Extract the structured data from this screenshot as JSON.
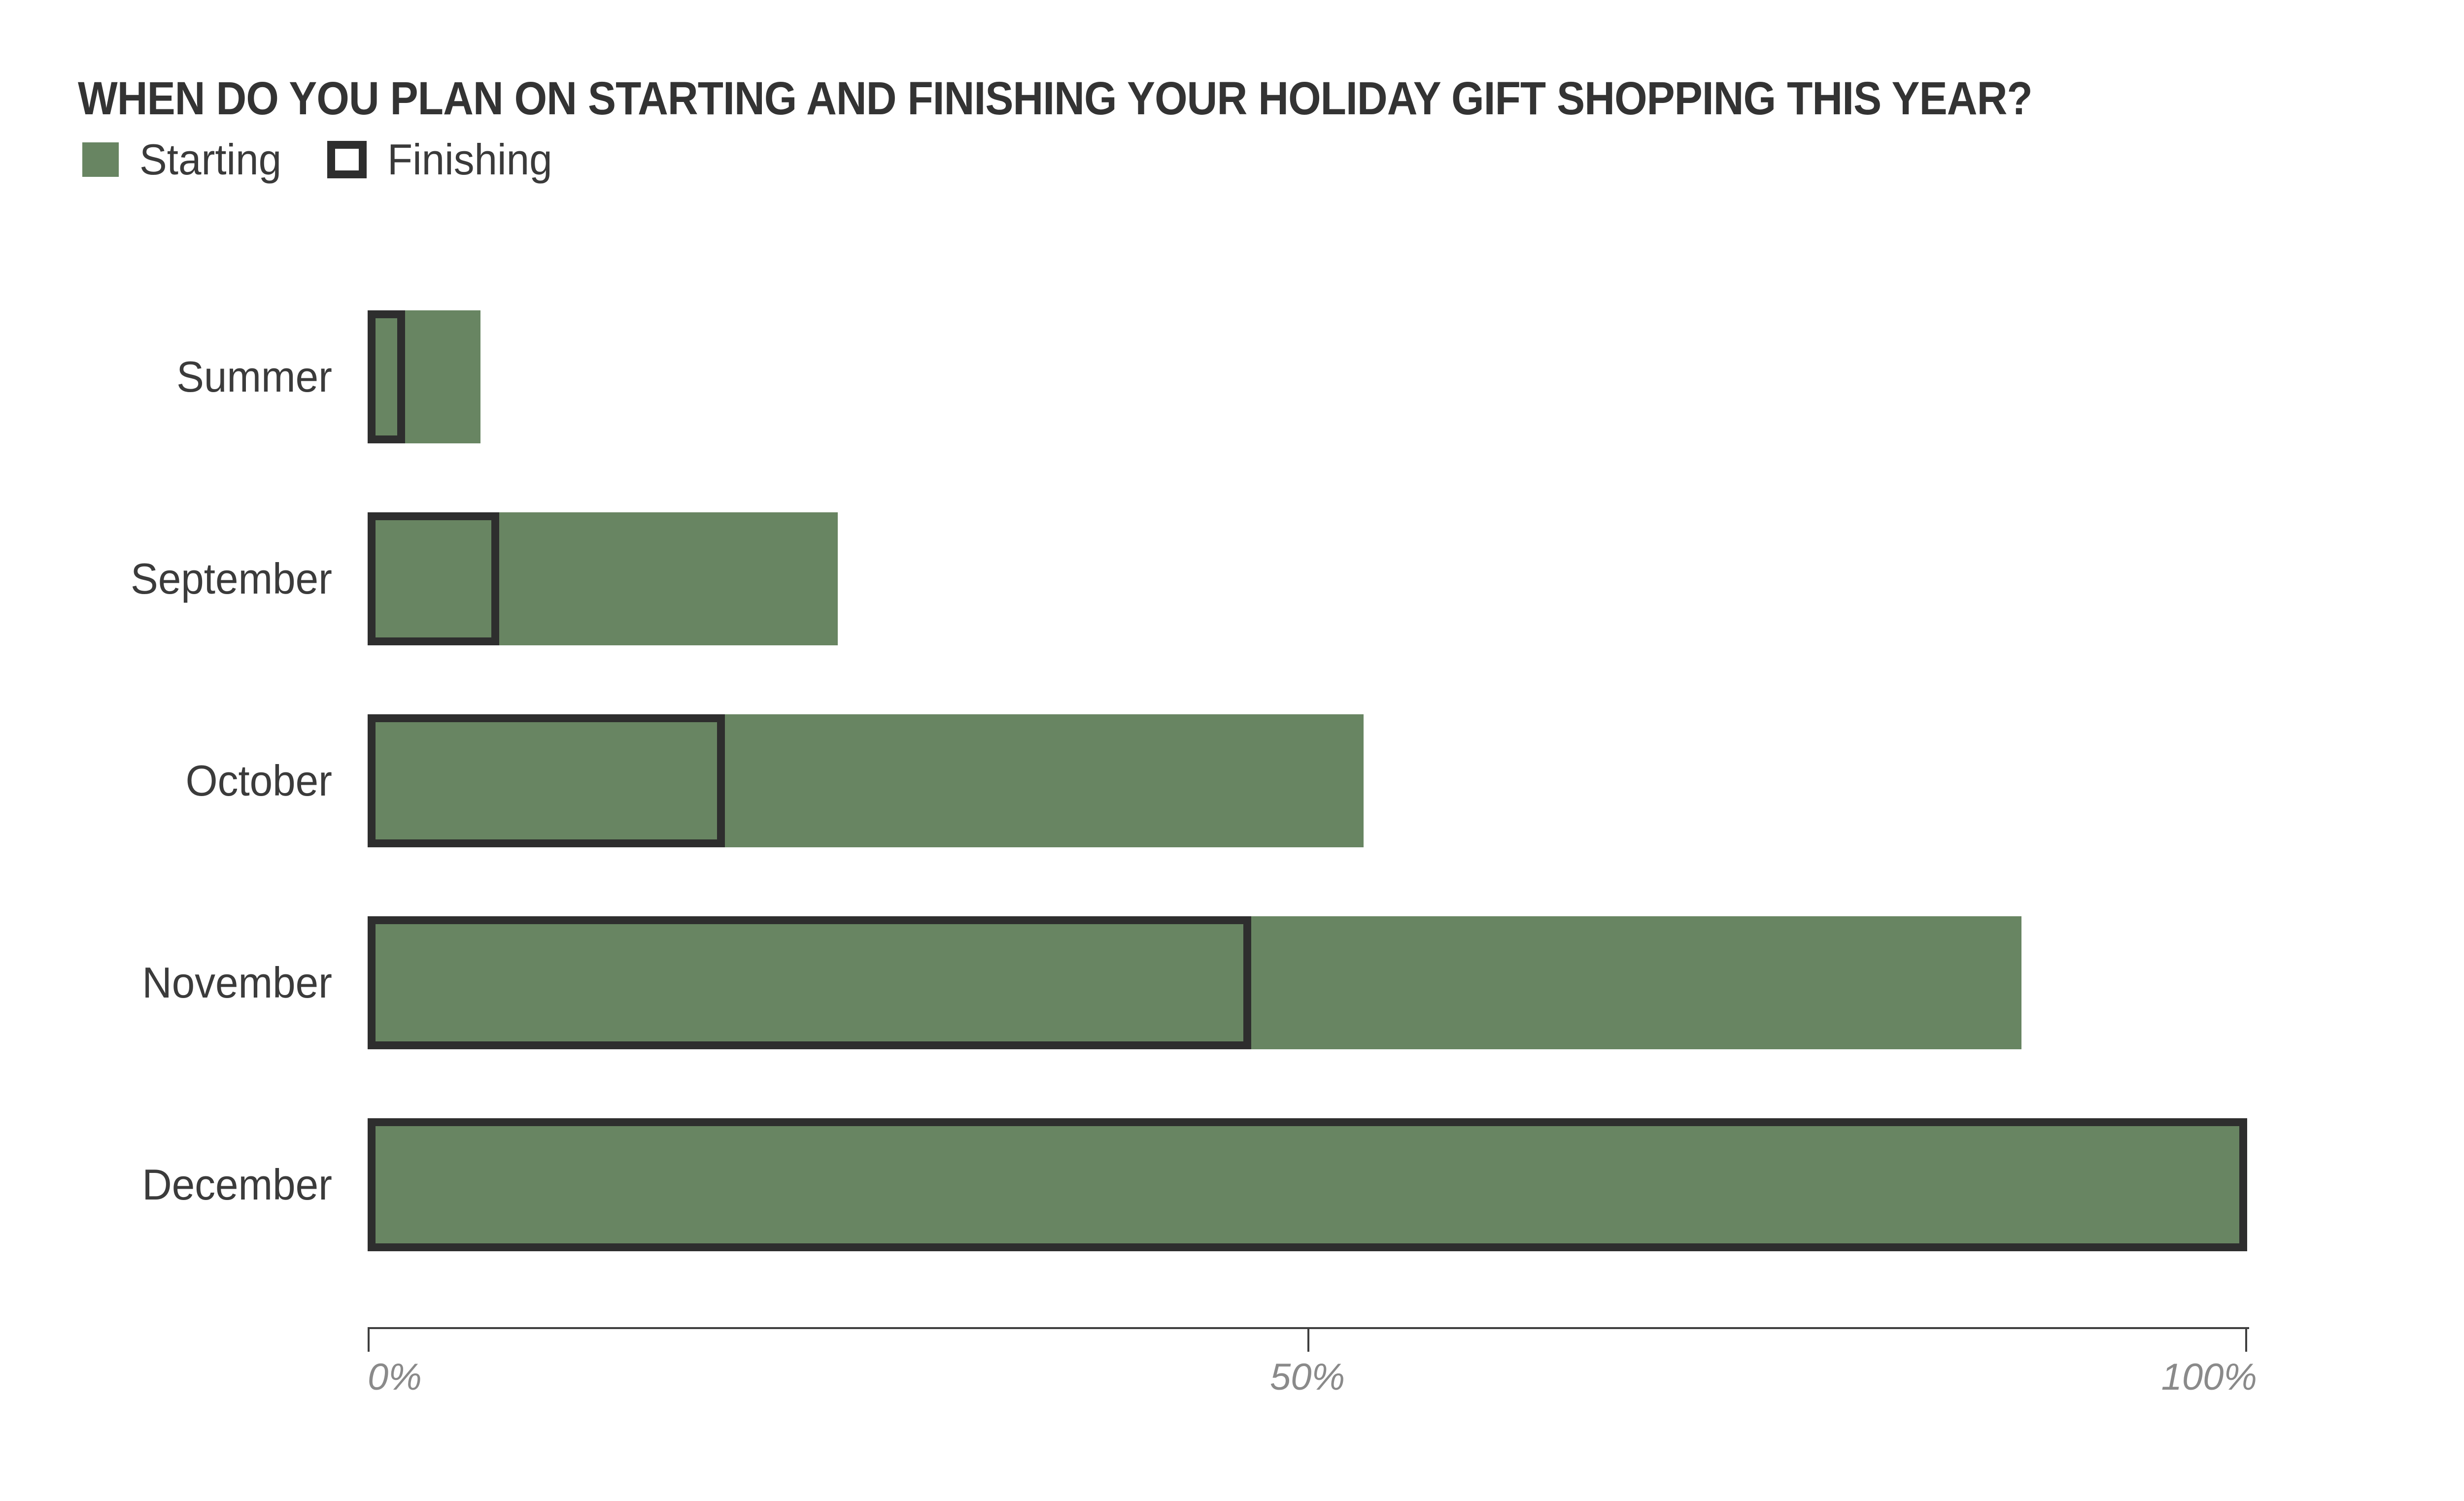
{
  "title": "WHEN DO YOU PLAN ON STARTING AND FINISHING YOUR HOLIDAY GIFT SHOPPING THIS YEAR?",
  "legend": {
    "items": [
      {
        "label": "Starting",
        "swatch": "filled-green-square"
      },
      {
        "label": "Finishing",
        "swatch": "black-outline-square"
      }
    ]
  },
  "colors": {
    "bar_green": "#688562",
    "outline_black": "#2e2e2e",
    "title_text": "#333333",
    "category_text": "#3b3b3b",
    "axis_line": "#3f3f3f",
    "axis_label_text": "#8a8a8a",
    "background": "#ffffff"
  },
  "chart_data": {
    "type": "bar",
    "orientation": "horizontal",
    "title": "WHEN DO YOU PLAN ON STARTING AND FINISHING YOUR HOLIDAY GIFT SHOPPING THIS YEAR?",
    "categories": [
      "Summer",
      "September",
      "October",
      "November",
      "December"
    ],
    "series": [
      {
        "name": "Starting",
        "style": "filled",
        "values": [
          6,
          25,
          53,
          88,
          100
        ]
      },
      {
        "name": "Finishing",
        "style": "outline",
        "values": [
          2,
          7,
          19,
          47,
          100
        ]
      }
    ],
    "unit": "%",
    "xlim": [
      0,
      100
    ],
    "x_ticks": [
      {
        "label": "0%",
        "value": 0
      },
      {
        "label": "50%",
        "value": 50
      },
      {
        "label": "100%",
        "value": 100
      }
    ],
    "xlabel": "",
    "ylabel": "",
    "grid": false,
    "legend_position": "top-left"
  }
}
